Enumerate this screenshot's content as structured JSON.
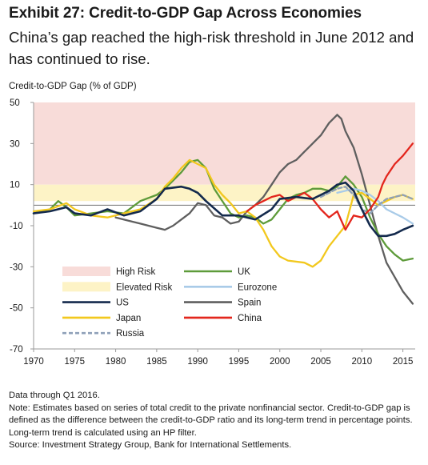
{
  "header": {
    "title": "Exhibit 27: Credit-to-GDP Gap Across Economies",
    "subtitle": "China’s gap reached the high-risk threshold in June 2012 and has continued to rise."
  },
  "footnotes": {
    "data_through": "Data through Q1 2016.",
    "note": "Note: Estimates based on series of total credit to the private nonfinancial sector. Credit-to-GDP gap is defined as the difference between the credit-to-GDP ratio and its long-term trend in percentage points. Long-term trend is calculated using an HP filter.",
    "source": "Source: Investment Strategy Group, Bank for International Settlements."
  },
  "chart_data": {
    "type": "line",
    "title": "Exhibit 27: Credit-to-GDP Gap Across Economies",
    "ylabel": "Credit-to-GDP Gap (% of GDP)",
    "xlabel": "",
    "xlim": [
      1970,
      2016.5
    ],
    "ylim": [
      -70,
      50
    ],
    "x_ticks": [
      "1970",
      "1975",
      "1980",
      "1985",
      "1990",
      "1995",
      "2000",
      "2005",
      "2010",
      "2015"
    ],
    "y_ticks": [
      "50",
      "30",
      "10",
      "-10",
      "-30",
      "-50",
      "-70"
    ],
    "bands": [
      {
        "name": "High Risk",
        "from": 10,
        "to": 50,
        "color": "#f8dcd9"
      },
      {
        "name": "Elevated Risk",
        "from": 2,
        "to": 10,
        "color": "#fdf3c6"
      }
    ],
    "zero_line": 0,
    "legend": [
      {
        "name": "High Risk",
        "kind": "band",
        "color": "#f8dcd9"
      },
      {
        "name": "UK",
        "kind": "line",
        "color": "#5e9b3a"
      },
      {
        "name": "Elevated Risk",
        "kind": "band",
        "color": "#fdf3c6"
      },
      {
        "name": "Eurozone",
        "kind": "line",
        "color": "#a9cbe8"
      },
      {
        "name": "US",
        "kind": "line",
        "color": "#142a4d"
      },
      {
        "name": "Spain",
        "kind": "line",
        "color": "#5f5f5f"
      },
      {
        "name": "Japan",
        "kind": "line",
        "color": "#f2c81e"
      },
      {
        "name": "China",
        "kind": "line",
        "color": "#e3261d"
      },
      {
        "name": "Russia",
        "kind": "dashed",
        "color": "#8ea0b8"
      }
    ],
    "series": [
      {
        "name": "US",
        "color": "#142a4d",
        "width": 2.6,
        "x": [
          1970,
          1972,
          1974,
          1975,
          1977,
          1979,
          1981,
          1983,
          1985,
          1986,
          1988,
          1989,
          1990,
          1991,
          1993,
          1995,
          1997,
          1999,
          2000,
          2002,
          2004,
          2005,
          2006,
          2007,
          2008,
          2009,
          2010,
          2011,
          2012,
          2013,
          2014,
          2015,
          2016.2
        ],
        "y": [
          -4,
          -3,
          -1,
          -4,
          -5,
          -2,
          -5,
          -3,
          3,
          8,
          9,
          8,
          6,
          2,
          -5,
          -5,
          -7,
          -2,
          3,
          4,
          3,
          5,
          7,
          10,
          11,
          7,
          -2,
          -10,
          -15,
          -15,
          -14,
          -12,
          -10
        ]
      },
      {
        "name": "Japan",
        "color": "#f2c81e",
        "width": 2.3,
        "x": [
          1970,
          1972,
          1974,
          1975,
          1977,
          1979,
          1981,
          1983,
          1985,
          1986,
          1987,
          1988,
          1989,
          1990,
          1991,
          1992,
          1993,
          1994,
          1995,
          1996,
          1997,
          1998,
          1999,
          2000,
          2001,
          2003,
          2004,
          2005,
          2006,
          2007,
          2008,
          2009,
          2010,
          2011,
          2012,
          2013,
          2014,
          2015,
          2016.2
        ],
        "y": [
          -3,
          -2,
          1,
          -2,
          -5,
          -6,
          -4,
          -2,
          3,
          9,
          13,
          18,
          22,
          20,
          18,
          10,
          5,
          1,
          -4,
          -3,
          -6,
          -12,
          -20,
          -25,
          -27,
          -28,
          -30,
          -27,
          -20,
          -15,
          -10,
          5,
          6,
          3,
          0,
          2,
          4,
          5,
          3
        ]
      },
      {
        "name": "UK",
        "color": "#5e9b3a",
        "width": 2.3,
        "x": [
          1970,
          1972,
          1973,
          1974,
          1975,
          1977,
          1979,
          1981,
          1983,
          1985,
          1986,
          1987,
          1988,
          1989,
          1990,
          1991,
          1992,
          1993,
          1994,
          1995,
          1996,
          1997,
          1998,
          1999,
          2000,
          2001,
          2002,
          2003,
          2004,
          2005,
          2006,
          2007,
          2008,
          2009,
          2010,
          2011,
          2012,
          2013,
          2014,
          2015,
          2016.2
        ],
        "y": [
          -4,
          -2,
          2,
          -1,
          -5,
          -4,
          -3,
          -4,
          2,
          5,
          8,
          12,
          16,
          21,
          22,
          18,
          8,
          2,
          -4,
          -6,
          -5,
          -6,
          -9,
          -7,
          -2,
          3,
          5,
          6,
          8,
          8,
          7,
          9,
          14,
          10,
          4,
          -6,
          -14,
          -20,
          -24,
          -27,
          -26
        ]
      },
      {
        "name": "Eurozone",
        "color": "#a9cbe8",
        "width": 2.3,
        "x": [
          2007,
          2008,
          2009,
          2010,
          2011,
          2012,
          2013,
          2014,
          2015,
          2016.2
        ],
        "y": [
          6,
          7,
          8,
          7,
          5,
          2,
          -2,
          -4,
          -6,
          -9
        ]
      },
      {
        "name": "Spain",
        "color": "#5f5f5f",
        "width": 2.3,
        "x": [
          1980,
          1982,
          1983,
          1984,
          1985,
          1986,
          1987,
          1988,
          1989,
          1990,
          1991,
          1992,
          1993,
          1994,
          1995,
          1996,
          1997,
          1998,
          1999,
          2000,
          2001,
          2002,
          2003,
          2004,
          2005,
          2006,
          2007,
          2007.5,
          2008,
          2009,
          2010,
          2011,
          2012,
          2013,
          2014,
          2015,
          2016.2
        ],
        "y": [
          -6,
          -8,
          -9,
          -10,
          -11,
          -12,
          -10,
          -7,
          -4,
          1,
          0,
          -5,
          -6,
          -9,
          -8,
          -3,
          0,
          4,
          10,
          16,
          20,
          22,
          26,
          30,
          34,
          40,
          44,
          42,
          36,
          28,
          15,
          0,
          -15,
          -28,
          -35,
          -42,
          -48
        ]
      },
      {
        "name": "China",
        "color": "#e3261d",
        "width": 2.3,
        "x": [
          1996,
          1997,
          1998,
          1999,
          2000,
          2001,
          2002,
          2003,
          2004,
          2005,
          2006,
          2007,
          2008,
          2009,
          2010,
          2011,
          2012,
          2012.5,
          2013,
          2014,
          2015,
          2016.2
        ],
        "y": [
          -3,
          0,
          2,
          4,
          5,
          2,
          4,
          6,
          3,
          -2,
          -6,
          -3,
          -12,
          -5,
          -6,
          -2,
          4,
          10,
          14,
          20,
          24,
          30
        ]
      },
      {
        "name": "Russia",
        "color": "#8ea0b8",
        "width": 2.3,
        "dashed": true,
        "x": [
          2005,
          2006,
          2007,
          2008,
          2009,
          2010,
          2011,
          2012,
          2013,
          2014,
          2015,
          2016.2
        ],
        "y": [
          4,
          6,
          8,
          9,
          5,
          -2,
          -4,
          0,
          3,
          4,
          5,
          3
        ]
      }
    ]
  }
}
